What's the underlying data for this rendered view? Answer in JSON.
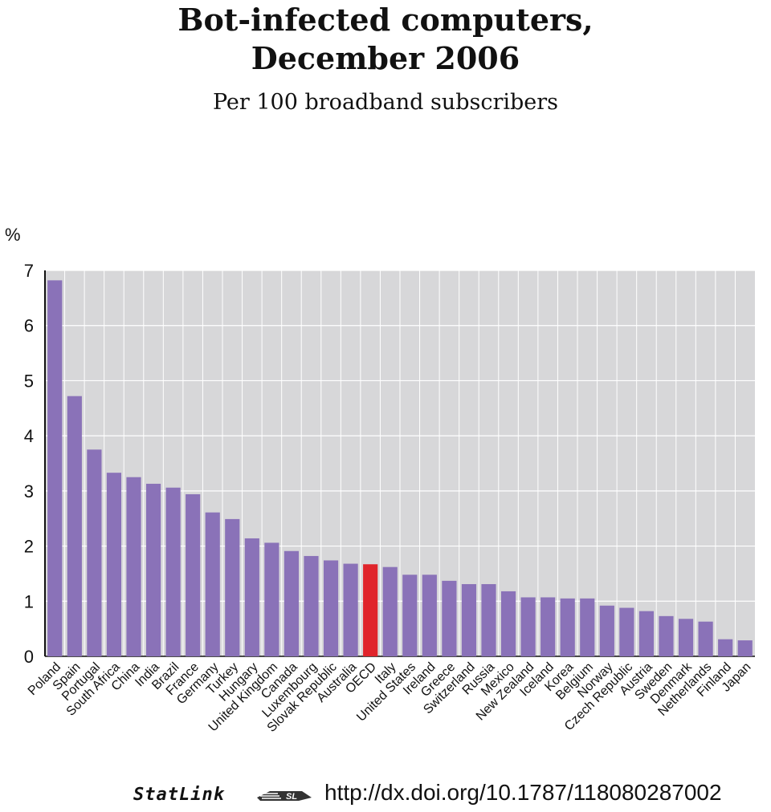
{
  "title_line1": "Bot-infected computers,",
  "title_line2": "December 2006",
  "subtitle": "Per 100 broadband subscribers",
  "unit_label": "%",
  "footer": {
    "statlink": "StatLink",
    "statlink_icon": "statlink-logo-icon",
    "url": "http://dx.doi.org/10.1787/118080287002"
  },
  "colors": {
    "bar": "#8a72b8",
    "highlight": "#e0242b",
    "plot_bg": "#d7d7d9",
    "grid": "#ffffff"
  },
  "chart_data": {
    "type": "bar",
    "title": "Bot-infected computers, December 2006",
    "subtitle": "Per 100 broadband subscribers",
    "ylabel": "%",
    "xlabel": "",
    "ylim": [
      0,
      7
    ],
    "yticks": [
      0,
      1,
      2,
      3,
      4,
      5,
      6,
      7
    ],
    "grid": true,
    "highlight_category": "OECD",
    "categories": [
      "Poland",
      "Spain",
      "Portugal",
      "South Africa",
      "China",
      "India",
      "Brazil",
      "France",
      "Germany",
      "Turkey",
      "Hungary",
      "United Kingdom",
      "Canada",
      "Luxembourg",
      "Slovak Republic",
      "Australia",
      "OECD",
      "Italy",
      "United States",
      "Ireland",
      "Greece",
      "Switzerland",
      "Russia",
      "Mexico",
      "New Zealand",
      "Iceland",
      "Korea",
      "Belgium",
      "Norway",
      "Czech Republic",
      "Austria",
      "Sweden",
      "Denmark",
      "Netherlands",
      "Finland",
      "Japan"
    ],
    "values": [
      6.82,
      4.72,
      3.75,
      3.33,
      3.25,
      3.13,
      3.06,
      2.94,
      2.61,
      2.49,
      2.14,
      2.06,
      1.91,
      1.82,
      1.74,
      1.68,
      1.67,
      1.62,
      1.48,
      1.48,
      1.37,
      1.31,
      1.31,
      1.18,
      1.07,
      1.07,
      1.05,
      1.05,
      0.92,
      0.88,
      0.82,
      0.73,
      0.68,
      0.63,
      0.31,
      0.29
    ]
  }
}
